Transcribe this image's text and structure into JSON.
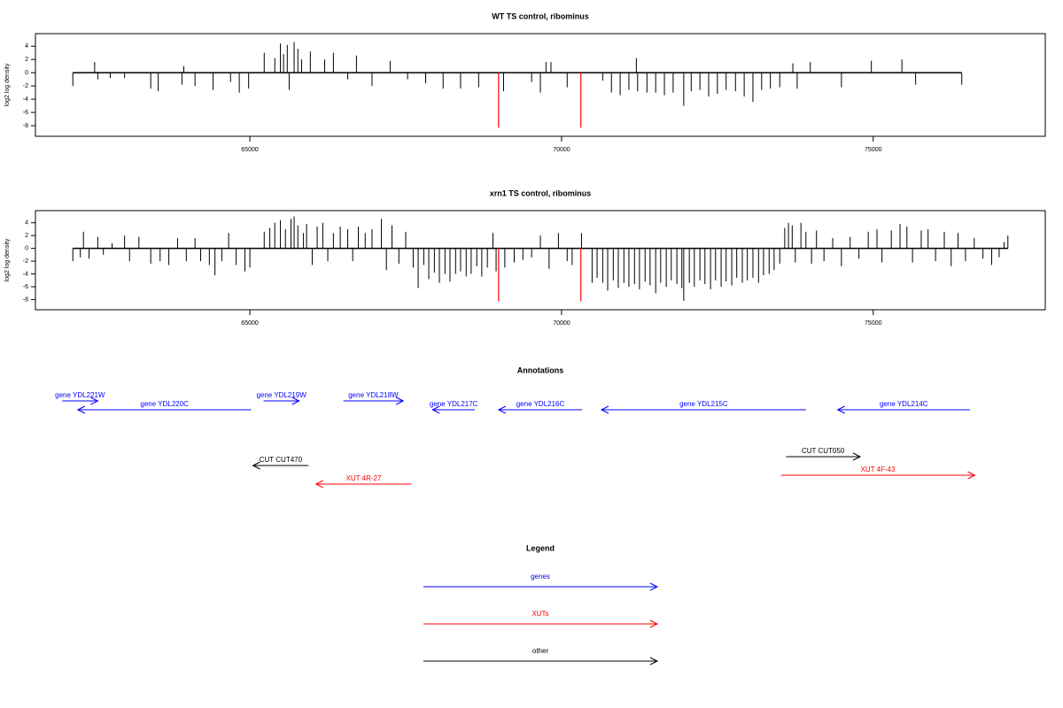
{
  "chart_data": [
    {
      "type": "bar",
      "title": "WT TS control, ribominus",
      "ylabel": "log2 log density",
      "color": "#000000",
      "xlim": [
        61560,
        77760
      ],
      "xticks": [
        65000,
        70000,
        75000
      ],
      "ylim": [
        -9.6,
        5.9
      ],
      "yticks": [
        -8,
        -6,
        -4,
        -2,
        0,
        2,
        4
      ],
      "x": [
        62160,
        62510,
        62560,
        62760,
        62990,
        63410,
        63530,
        63910,
        63940,
        64120,
        64410,
        64690,
        64830,
        64980,
        65230,
        65400,
        65490,
        65540,
        65600,
        65630,
        65710,
        65770,
        65830,
        65970,
        66200,
        66340,
        66570,
        66710,
        66960,
        67250,
        67530,
        67820,
        68100,
        68380,
        68670,
        69070,
        69520,
        69660,
        69750,
        69830,
        70090,
        70660,
        70800,
        70940,
        71080,
        71200,
        71220,
        71370,
        71510,
        71650,
        71790,
        71960,
        72080,
        72220,
        72360,
        72500,
        72640,
        72790,
        72930,
        73070,
        73210,
        73350,
        73500,
        73710,
        73780,
        73990,
        74490,
        74970,
        75460,
        75680,
        76420
      ],
      "values": [
        -2,
        1.6,
        -1,
        -0.8,
        -0.8,
        -2.4,
        -2.8,
        -1.8,
        1,
        -2,
        -2.6,
        -1.4,
        -3,
        -2.4,
        3,
        2.2,
        4.4,
        2.8,
        4.2,
        -2.6,
        4.6,
        3.6,
        2,
        3.2,
        2,
        3,
        -1,
        2.6,
        -2,
        1.8,
        -1,
        -1.6,
        -2.4,
        -2.4,
        -2.2,
        -2.8,
        -1.4,
        -3,
        1.6,
        1.6,
        -2.2,
        -1.2,
        -3,
        -3.4,
        -2.6,
        2.2,
        -2.8,
        -3,
        -3,
        -3.4,
        -3,
        -5,
        -2.8,
        -2.6,
        -3.6,
        -3.2,
        -2.6,
        -2.8,
        -3.6,
        -4.4,
        -2.6,
        -2.4,
        -2.2,
        1.4,
        -2.4,
        1.6,
        -2.2,
        1.8,
        2,
        -1.8,
        -1.8
      ],
      "highlights": {
        "x": [
          68990,
          70310
        ],
        "values": [
          -8.3,
          -8.3
        ],
        "color": "#ff0000"
      }
    },
    {
      "type": "bar",
      "title": "xrn1 TS control, ribominus",
      "ylabel": "log2 log density",
      "color": "#000000",
      "xlim": [
        61560,
        77760
      ],
      "xticks": [
        65000,
        70000,
        75000
      ],
      "ylim": [
        -9.6,
        5.9
      ],
      "yticks": [
        -8,
        -6,
        -4,
        -2,
        0,
        2,
        4
      ],
      "x": [
        62160,
        62280,
        62330,
        62420,
        62560,
        62650,
        62790,
        62990,
        63070,
        63220,
        63410,
        63560,
        63700,
        63840,
        63980,
        64120,
        64210,
        64350,
        64440,
        64550,
        64660,
        64780,
        64920,
        65000,
        65230,
        65320,
        65400,
        65490,
        65570,
        65660,
        65710,
        65770,
        65860,
        65910,
        66000,
        66080,
        66170,
        66250,
        66340,
        66450,
        66570,
        66650,
        66740,
        66850,
        66960,
        67110,
        67190,
        67280,
        67390,
        67500,
        67620,
        67700,
        67790,
        67870,
        67960,
        68040,
        68130,
        68210,
        68300,
        68380,
        68470,
        68550,
        68640,
        68720,
        68810,
        68900,
        68950,
        69090,
        69240,
        69380,
        69520,
        69660,
        69800,
        69950,
        70090,
        70170,
        70320,
        70490,
        70570,
        70660,
        70740,
        70830,
        70910,
        71000,
        71080,
        71170,
        71250,
        71340,
        71420,
        71510,
        71590,
        71680,
        71760,
        71850,
        71930,
        71960,
        72050,
        72130,
        72220,
        72300,
        72390,
        72470,
        72560,
        72640,
        72730,
        72810,
        72900,
        72980,
        73070,
        73160,
        73240,
        73330,
        73410,
        73500,
        73580,
        73640,
        73700,
        73750,
        73840,
        73920,
        74010,
        74090,
        74210,
        74350,
        74490,
        74630,
        74770,
        74920,
        75060,
        75140,
        75290,
        75430,
        75540,
        75630,
        75770,
        75880,
        76000,
        76140,
        76250,
        76360,
        76480,
        76620,
        76760,
        76900,
        77020,
        77100,
        77160
      ],
      "values": [
        -2,
        -1.4,
        2.6,
        -1.6,
        1.8,
        -1,
        0.8,
        2,
        -2,
        1.8,
        -2.4,
        -2,
        -2.6,
        1.6,
        -2,
        1.6,
        -2,
        -2.6,
        -4.2,
        -2,
        2.4,
        -2.6,
        -3.6,
        -3,
        2.6,
        3.2,
        4,
        4.4,
        3,
        4.6,
        5,
        3.6,
        2.4,
        3.8,
        -2.6,
        3.4,
        4,
        -2,
        2.4,
        3.4,
        3,
        -2,
        3.4,
        2.4,
        3,
        4.6,
        -3.4,
        3.6,
        -2.4,
        2.6,
        -3,
        -6.2,
        -2.6,
        -4.8,
        -3.8,
        -5.4,
        -4,
        -5.2,
        -4,
        -3.6,
        -4.4,
        -4,
        -2.8,
        -4.4,
        -3,
        2.4,
        -3.6,
        -3,
        -2.2,
        -1.8,
        -1.4,
        2,
        -3.2,
        2.4,
        -2,
        -2.6,
        2.4,
        -5.4,
        -4.6,
        -5.4,
        -6.6,
        -5,
        -6.2,
        -5.4,
        -6,
        -5.6,
        -6.4,
        -5.2,
        -5.8,
        -7,
        -5.4,
        -6,
        -5,
        -5.6,
        -6.2,
        -8.2,
        -5.4,
        -6,
        -5,
        -5.6,
        -6.4,
        -5,
        -6,
        -5.2,
        -5.8,
        -4.6,
        -5.4,
        -5,
        -4.6,
        -5.4,
        -4.2,
        -4,
        -3.4,
        -2.4,
        3.2,
        4,
        3.6,
        -2.2,
        4,
        2.6,
        -2.4,
        2.8,
        -2,
        1.6,
        -2.8,
        1.8,
        -1.6,
        2.6,
        3,
        -2.2,
        2.8,
        3.8,
        3.4,
        -2.2,
        2.8,
        3,
        -2,
        2.6,
        -2.8,
        2.4,
        -2,
        1.6,
        -1.6,
        -2.6,
        -1.4,
        1,
        2
      ],
      "highlights": {
        "x": [
          68990,
          70310
        ],
        "values": [
          -8.3,
          -8.3
        ],
        "color": "#ff0000"
      }
    }
  ],
  "annotations": {
    "title": "Annotations",
    "items": [
      {
        "label": "gene YDL221W",
        "color": "#0000ff",
        "start": 61990,
        "end": 62560,
        "strand": "+"
      },
      {
        "label": "gene YDL220C",
        "color": "#0000ff",
        "start": 62240,
        "end": 65020,
        "strand": "-"
      },
      {
        "label": "gene YDL219W",
        "color": "#0000ff",
        "start": 65220,
        "end": 65790,
        "strand": "+"
      },
      {
        "label": "gene YDL218W",
        "color": "#0000ff",
        "start": 66500,
        "end": 67460,
        "strand": "+"
      },
      {
        "label": "gene YDL217C",
        "color": "#0000ff",
        "start": 67930,
        "end": 68610,
        "strand": "-"
      },
      {
        "label": "gene YDL216C",
        "color": "#0000ff",
        "start": 68990,
        "end": 70330,
        "strand": "-"
      },
      {
        "label": "gene YDL215C",
        "color": "#0000ff",
        "start": 70640,
        "end": 73920,
        "strand": "-"
      },
      {
        "label": "gene YDL214C",
        "color": "#0000ff",
        "start": 74430,
        "end": 76550,
        "strand": "-"
      },
      {
        "label": "CUT CUT470",
        "color": "#000000",
        "start": 65050,
        "end": 65940,
        "strand": "-"
      },
      {
        "label": "XUT 4R-27",
        "color": "#ff0000",
        "start": 66060,
        "end": 67590,
        "strand": "-"
      },
      {
        "label": "CUT CUT050",
        "color": "#000000",
        "start": 73600,
        "end": 74790,
        "strand": "+"
      },
      {
        "label": "XUT 4F-43",
        "color": "#ff0000",
        "start": 73520,
        "end": 76630,
        "strand": "+"
      }
    ]
  },
  "legend": {
    "title": "Legend",
    "entries": [
      {
        "label": "genes",
        "color": "#0000ff"
      },
      {
        "label": "XUTs",
        "color": "#ff0000"
      },
      {
        "label": "other",
        "color": "#000000"
      }
    ]
  }
}
